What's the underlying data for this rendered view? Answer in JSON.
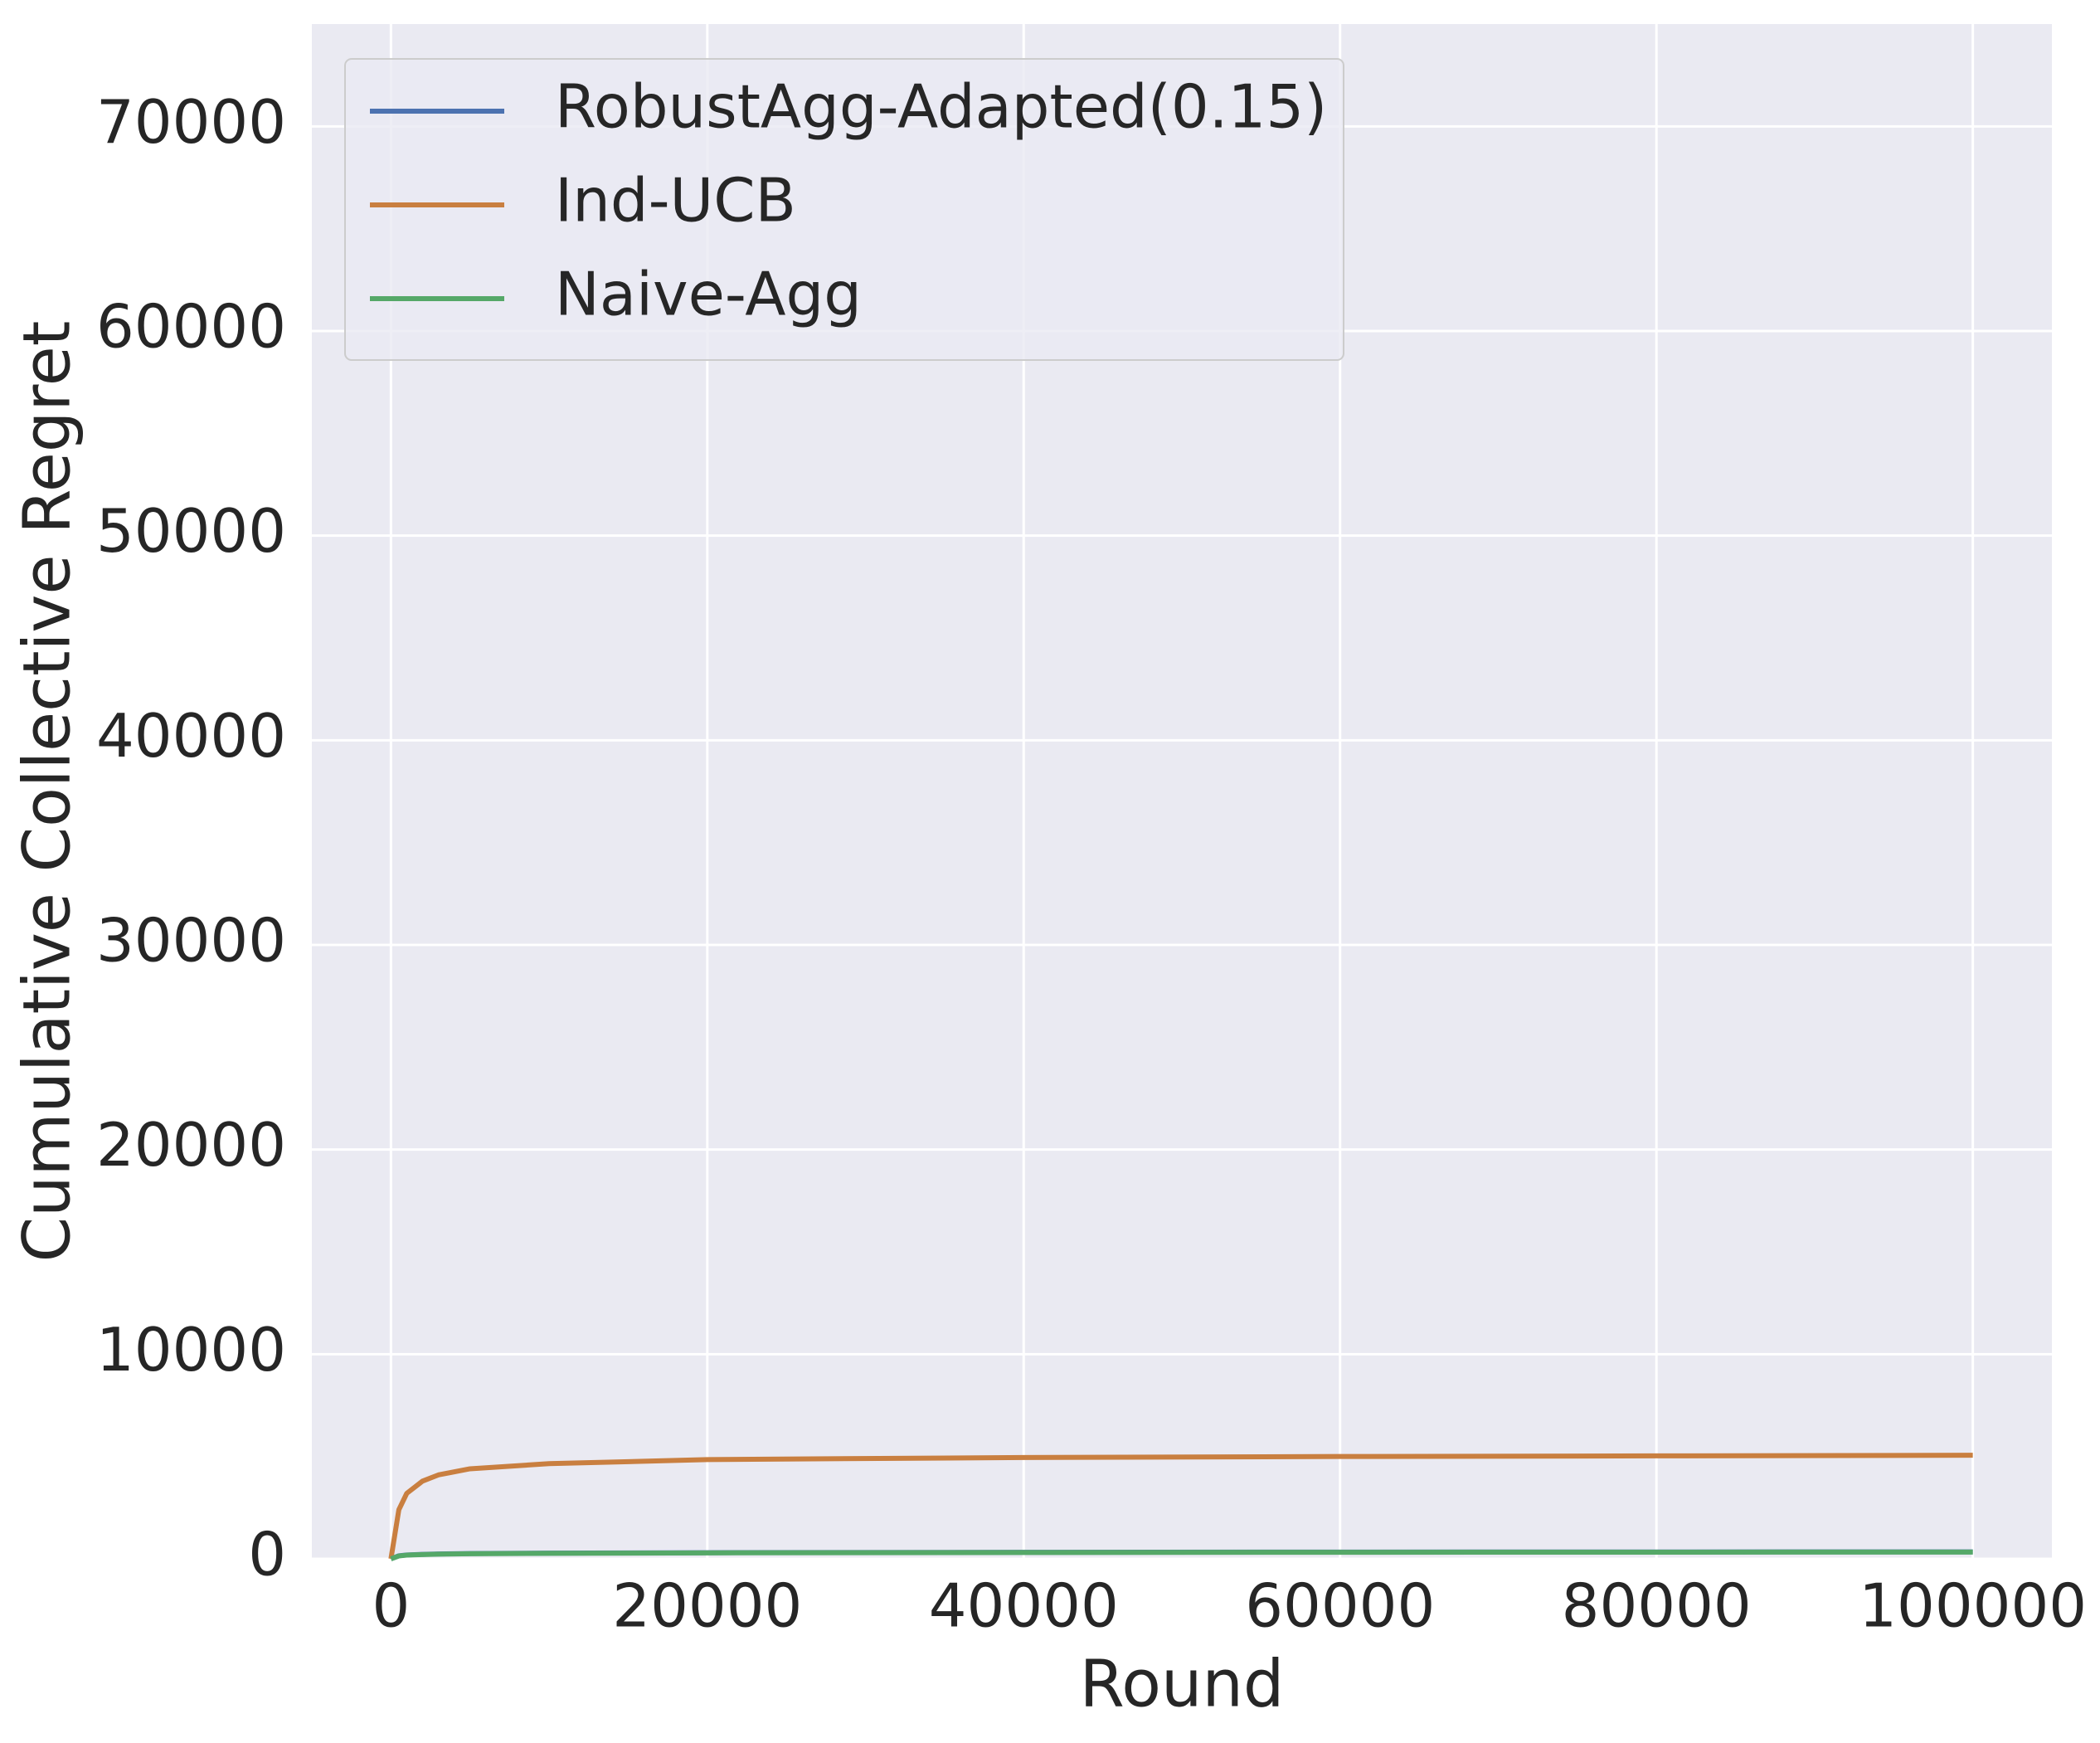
{
  "chart_data": {
    "type": "line",
    "xlabel": "Round",
    "ylabel": "Cumulative Collective Regret",
    "x": [
      0,
      500,
      1000,
      2000,
      3000,
      5000,
      10000,
      20000,
      40000,
      60000,
      80000,
      100000
    ],
    "series": [
      {
        "name": "RobustAgg-Adapted(0.15)",
        "color": "#4c72b0",
        "values": [
          0,
          150,
          190,
          220,
          240,
          260,
          280,
          300,
          320,
          330,
          335,
          340
        ]
      },
      {
        "name": "Ind-UCB",
        "color": "#c97f40",
        "values": [
          0,
          2400,
          3200,
          3800,
          4100,
          4400,
          4650,
          4850,
          4950,
          5000,
          5030,
          5060
        ]
      },
      {
        "name": "Naive-Agg",
        "color": "#55a868",
        "values": [
          0,
          140,
          180,
          210,
          230,
          250,
          270,
          290,
          310,
          320,
          325,
          330
        ]
      }
    ],
    "xlim": [
      -5000,
      105000
    ],
    "xticks": [
      0,
      20000,
      40000,
      60000,
      80000,
      100000
    ],
    "ylim": [
      0,
      75000
    ],
    "yticks": [
      0,
      10000,
      20000,
      30000,
      40000,
      50000,
      60000,
      70000
    ],
    "grid": true,
    "legend": "upper left"
  }
}
